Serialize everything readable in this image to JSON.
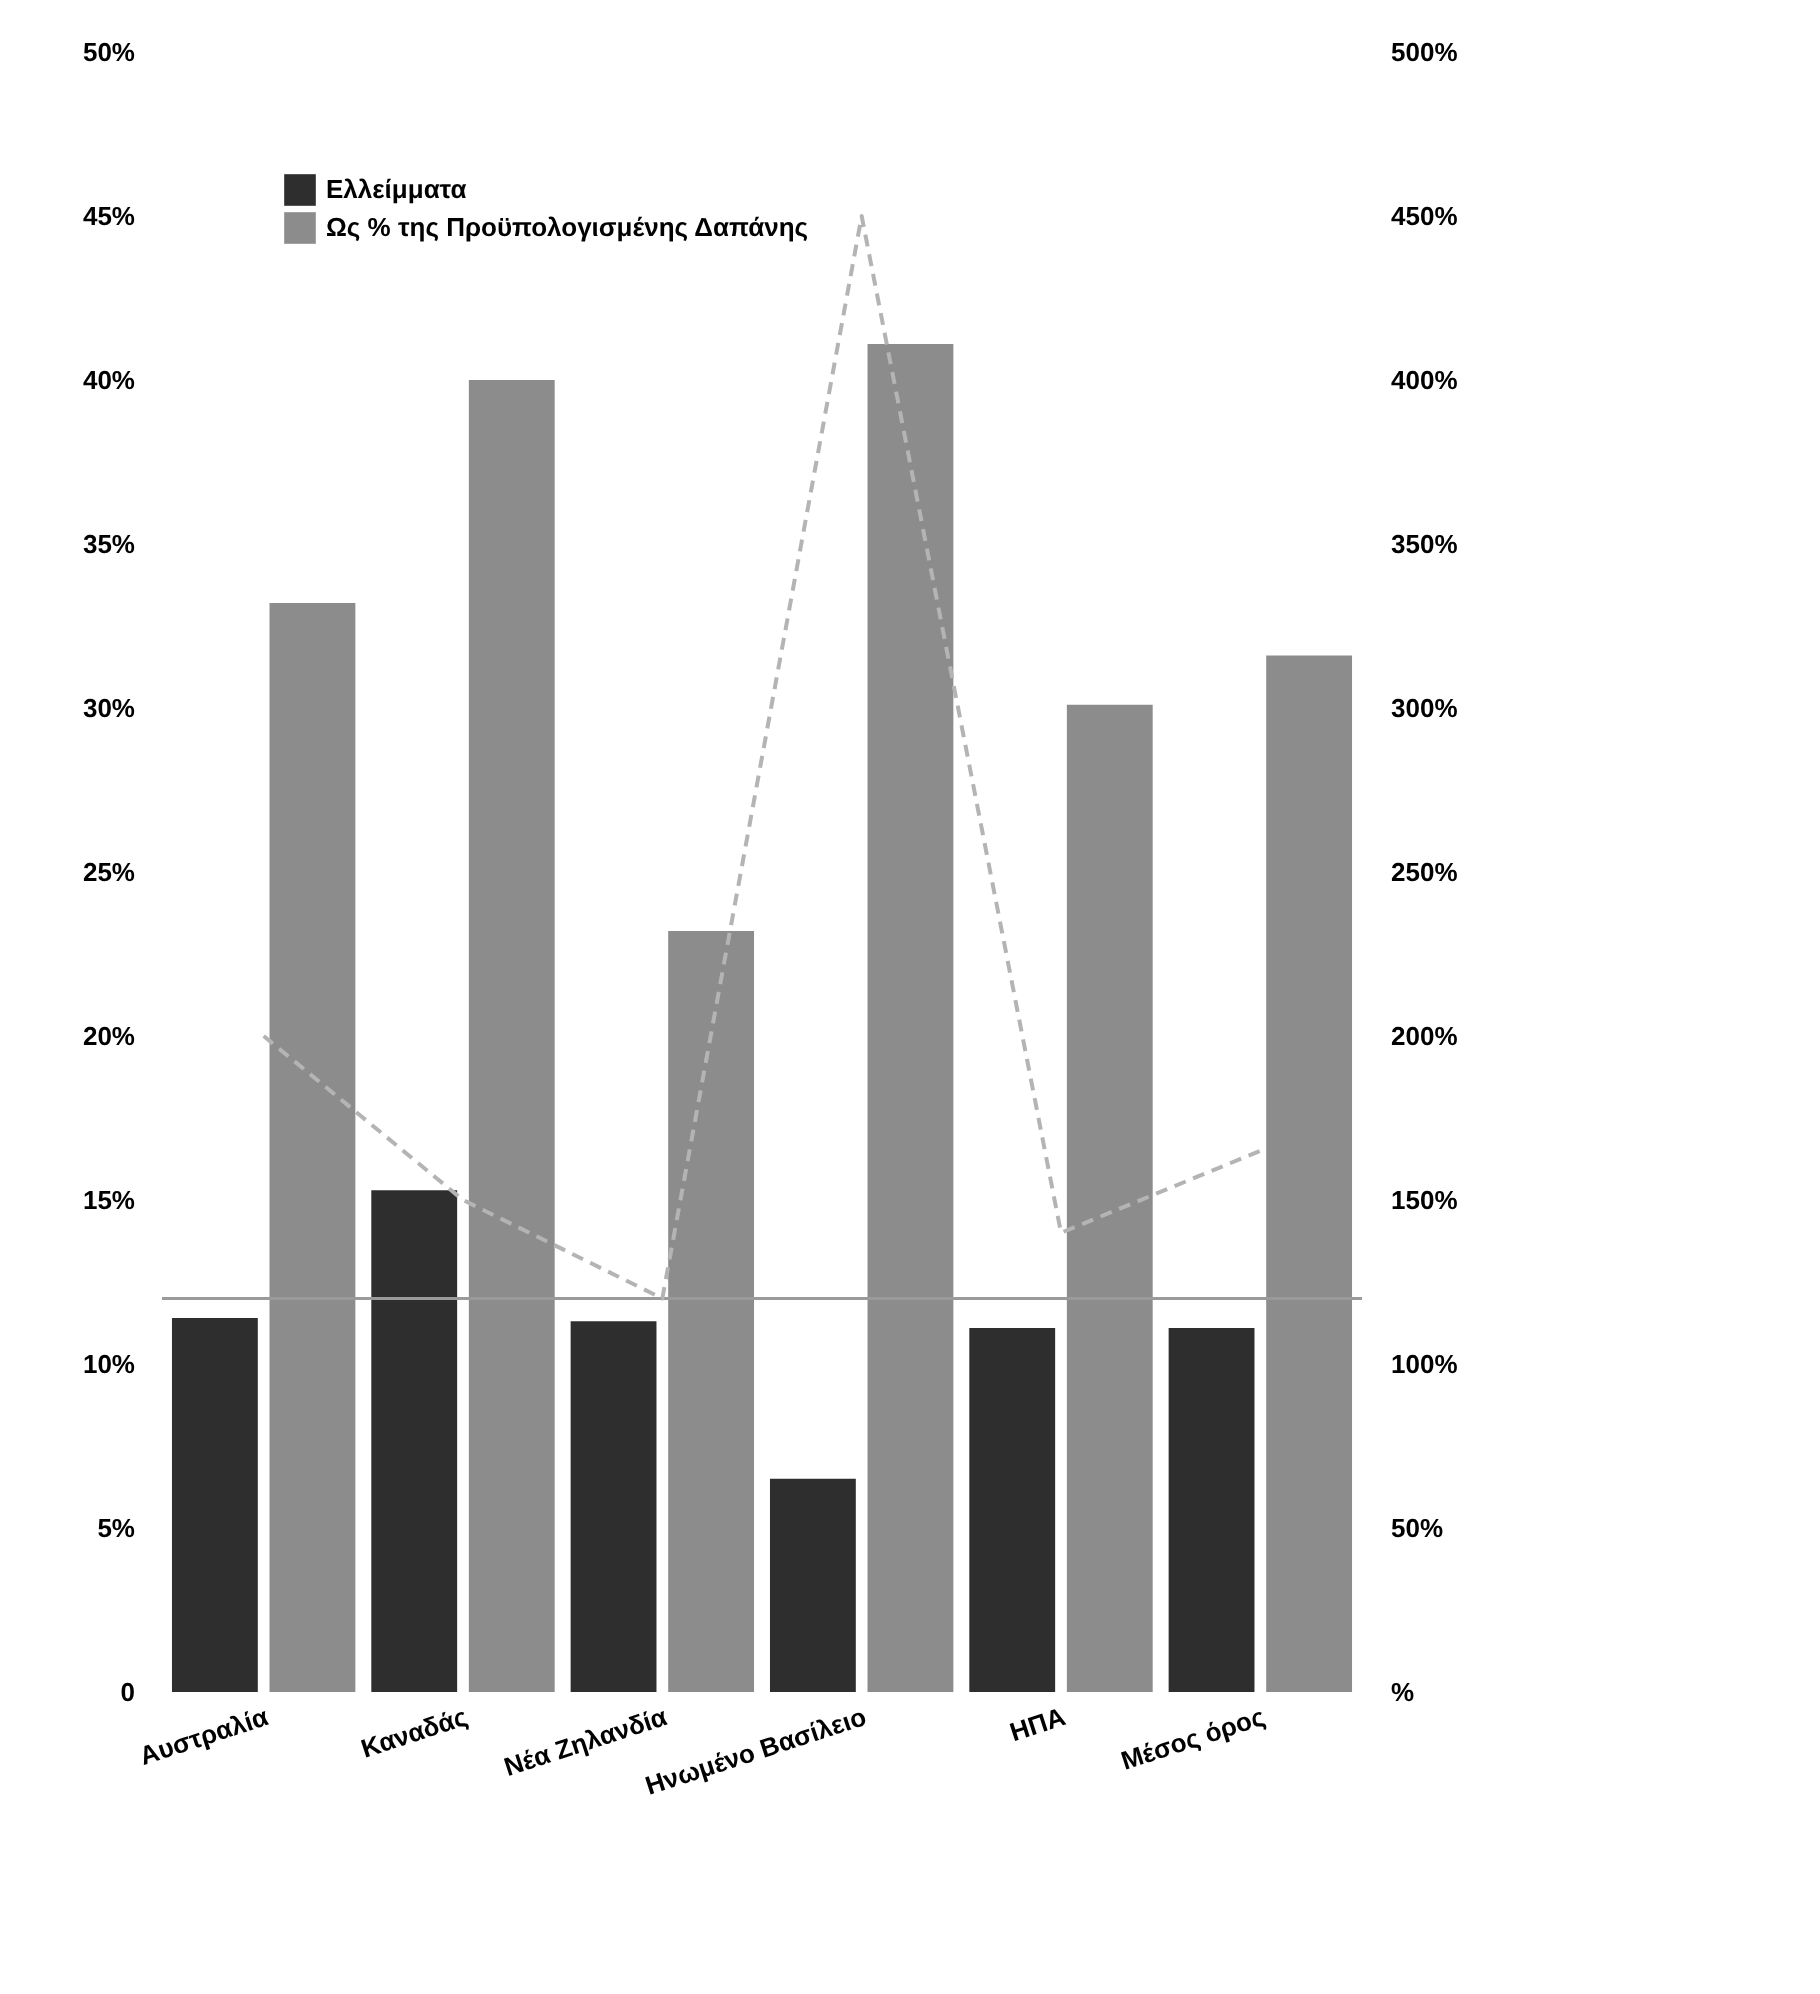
{
  "chart_data": {
    "type": "bar",
    "categories": [
      "Αυστραλία",
      "Καναδάς",
      "Νέα Ζηλανδία",
      "Ηνωμένο Βασίλειο",
      "ΗΠΑ",
      "Μέσος όρος"
    ],
    "series": [
      {
        "name": "Ελλείμματα",
        "color": "#2e2e2e",
        "values": [
          11.4,
          15.3,
          11.3,
          6.5,
          11.1,
          11.1
        ]
      },
      {
        "name": "Ως % της Προϋπολογισμένης Δαπάνης",
        "color": "#8c8c8c",
        "values": [
          33.2,
          40.0,
          23.2,
          41.1,
          30.1,
          31.6
        ]
      },
      {
        "type": "line",
        "axis": "y2",
        "color": "#b4b4b4",
        "line_style": "dashed",
        "marker": "none",
        "values": [
          200,
          150,
          120,
          450,
          140,
          165
        ]
      }
    ],
    "ylim": [
      0,
      50
    ],
    "yticks": [
      {
        "value": 0,
        "label": "0"
      },
      {
        "value": 5,
        "label": "5%"
      },
      {
        "value": 10,
        "label": "10%"
      },
      {
        "value": 15,
        "label": "15%"
      },
      {
        "value": 20,
        "label": "20%"
      },
      {
        "value": 25,
        "label": "25%"
      },
      {
        "value": 30,
        "label": "30%"
      },
      {
        "value": 35,
        "label": "35%"
      },
      {
        "value": 40,
        "label": "40%"
      },
      {
        "value": 45,
        "label": "45%"
      },
      {
        "value": 50,
        "label": "50%"
      }
    ],
    "y2lim": [
      0,
      500
    ],
    "y2ticks": [
      {
        "value": 0,
        "label": "%"
      },
      {
        "value": 50,
        "label": "50%"
      },
      {
        "value": 100,
        "label": "100%"
      },
      {
        "value": 150,
        "label": "150%"
      },
      {
        "value": 200,
        "label": "200%"
      },
      {
        "value": 250,
        "label": "250%"
      },
      {
        "value": 300,
        "label": "300%"
      },
      {
        "value": 350,
        "label": "350%"
      },
      {
        "value": 400,
        "label": "400%"
      },
      {
        "value": 450,
        "label": "450%"
      },
      {
        "value": 500,
        "label": "500%"
      }
    ],
    "ref_lines": [
      {
        "axis": "y",
        "value": 12,
        "color": "#9a9a9a"
      }
    ],
    "legend": "top left"
  }
}
